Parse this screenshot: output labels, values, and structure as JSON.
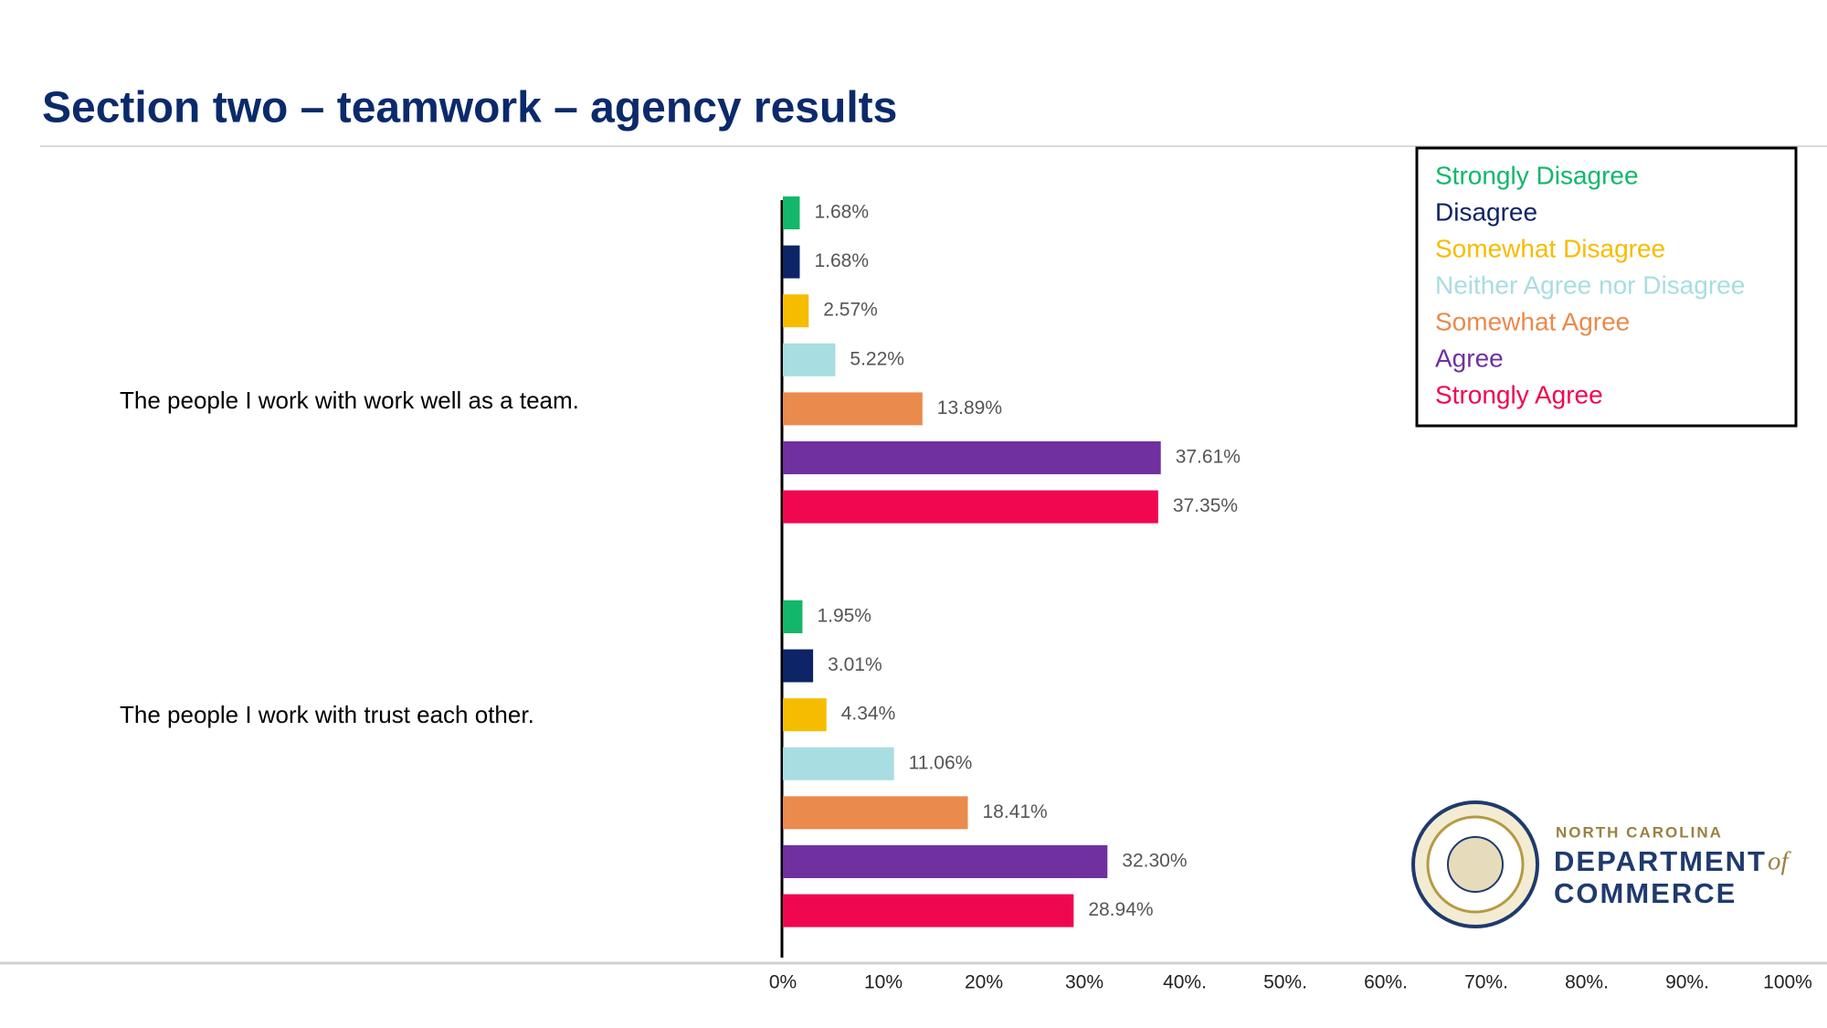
{
  "chart_data": {
    "type": "hbar",
    "title": "Section two – teamwork – agency results",
    "categories": [
      "The people I work with work well as a team.",
      "The people I work with trust each other."
    ],
    "series": [
      {
        "name": "Strongly Disagree",
        "color": "#12b76a",
        "values": [
          1.68,
          1.95
        ],
        "value_labels": [
          "1.68%",
          "1.95%"
        ]
      },
      {
        "name": "Disagree",
        "color": "#0d2466",
        "values": [
          1.68,
          3.01
        ],
        "value_labels": [
          "1.68%",
          "3.01%"
        ]
      },
      {
        "name": "Somewhat Disagree",
        "color": "#f6bc00",
        "values": [
          2.57,
          4.34
        ],
        "value_labels": [
          "2.57%",
          "4.34%"
        ]
      },
      {
        "name": "Neither Agree nor Disagree",
        "color": "#a8dde2",
        "values": [
          5.22,
          11.06
        ],
        "value_labels": [
          "5.22%",
          "11.06%"
        ]
      },
      {
        "name": "Somewhat Agree",
        "color": "#ea8a4c",
        "values": [
          13.89,
          18.41
        ],
        "value_labels": [
          "13.89%",
          "18.41%"
        ]
      },
      {
        "name": "Agree",
        "color": "#7030a0",
        "values": [
          37.61,
          32.3
        ],
        "value_labels": [
          "37.61%",
          "32.30%"
        ]
      },
      {
        "name": "Strongly Agree",
        "color": "#f0074f",
        "values": [
          37.35,
          28.94
        ],
        "value_labels": [
          "37.35%",
          "28.94%"
        ]
      }
    ],
    "xlim": [
      0,
      100
    ],
    "xticks": [
      {
        "value": 0,
        "label": "0%"
      },
      {
        "value": 10,
        "label": "10%"
      },
      {
        "value": 20,
        "label": "20%"
      },
      {
        "value": 30,
        "label": "30%"
      },
      {
        "value": 40,
        "label": "40%."
      },
      {
        "value": 50,
        "label": "50%."
      },
      {
        "value": 60,
        "label": "60%."
      },
      {
        "value": 70,
        "label": "70%."
      },
      {
        "value": 80,
        "label": "80%."
      },
      {
        "value": 90,
        "label": "90%."
      },
      {
        "value": 100,
        "label": "100%"
      }
    ],
    "legend": "top-right"
  },
  "logo": {
    "line1": "NORTH CAROLINA",
    "line2": "DEPARTMENT",
    "of": "of",
    "line3": "COMMERCE"
  }
}
